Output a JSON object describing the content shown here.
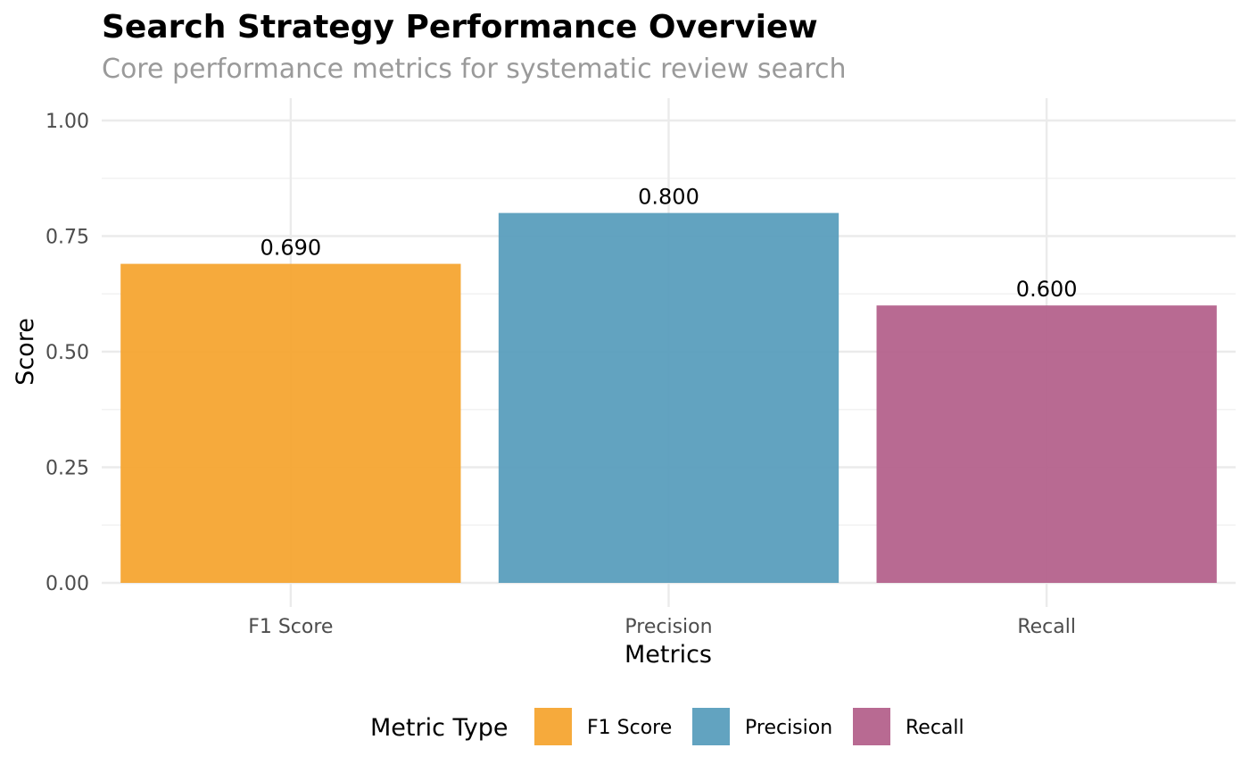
{
  "chart_data": {
    "type": "bar",
    "title": "Search Strategy Performance Overview",
    "subtitle": "Core performance metrics for systematic review search",
    "xlabel": "Metrics",
    "ylabel": "Score",
    "categories": [
      "F1 Score",
      "Precision",
      "Recall"
    ],
    "values": [
      0.69,
      0.8,
      0.6
    ],
    "data_labels": [
      "0.690",
      "0.800",
      "0.600"
    ],
    "colors": [
      "#f5a532",
      "#5a9ebd",
      "#b4628c"
    ],
    "ylim": [
      0,
      1.05
    ],
    "yticks": [
      0,
      0.25,
      0.5,
      0.75,
      1.0
    ],
    "ytick_labels": [
      "0.00",
      "0.25",
      "0.50",
      "0.75",
      "1.00"
    ],
    "grid": true,
    "legend": {
      "title": "Metric Type",
      "position": "bottom",
      "entries": [
        "F1 Score",
        "Precision",
        "Recall"
      ]
    }
  }
}
